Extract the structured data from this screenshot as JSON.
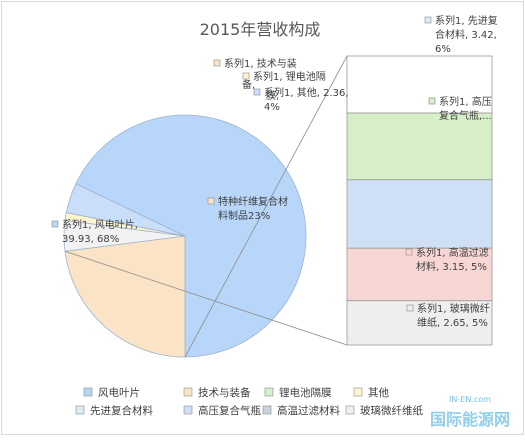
{
  "chart_data": {
    "type": "bar-of-pie",
    "title": "2015年营收构成",
    "series_name": "系列1",
    "pie": [
      {
        "category": "风电叶片",
        "value": 39.93,
        "percent": "68%",
        "color": "#b8d6fa"
      },
      {
        "category": "特种纤维复合材料制品",
        "value": 13.52,
        "percent": "23%",
        "color": "#fbe3c6"
      },
      {
        "category": "技术与装备",
        "value": 2.4,
        "percent": "4%",
        "color": "#f2f2f2"
      },
      {
        "category": "锂电池隔膜",
        "value": 0.6,
        "percent": "1%",
        "color": "#fdf6cf"
      },
      {
        "category": "其他",
        "value": 2.36,
        "percent": "4%",
        "color": "#c9defa"
      }
    ],
    "bar": [
      {
        "category": "先进复合材料",
        "value": 3.42,
        "percent": "6%",
        "color": "#ffffff"
      },
      {
        "category": "高压复合气瓶",
        "value": 4.0,
        "percent": "",
        "color": "#d6efc8"
      },
      {
        "category": "",
        "value": 4.1,
        "percent": "",
        "color": "#cfe0f6"
      },
      {
        "category": "高温过滤材料",
        "value": 3.15,
        "percent": "5%",
        "color": "#f7d6d4"
      },
      {
        "category": "玻璃微纤维纸",
        "value": 2.65,
        "percent": "5%",
        "color": "#eeeeee"
      }
    ],
    "labels": {
      "wind": [
        "系列1, 风电叶片,",
        "39.93, 68%"
      ],
      "special": [
        "特种纤维复合材",
        "料制品23%"
      ],
      "tech": [
        "系列1, 技术与装"
      ],
      "tech2": [
        "备,"
      ],
      "lithium": [
        "系列1, 锂电池隔"
      ],
      "lithium2": [
        "膜,"
      ],
      "other": [
        "系列1, 其他, 2.36,",
        "4%"
      ],
      "advanced": [
        "系列1, 先进复",
        "合材料, 3.42,",
        "6%"
      ],
      "cylinder": [
        "系列1, 高压",
        "复合气瓶,..."
      ],
      "filter": [
        "系列1, 高温过滤",
        "材料, 3.15, 5%"
      ],
      "glass": [
        "系列1, 玻璃微纤",
        "维纸, 2.65, 5%"
      ]
    },
    "legend_position": "bottom",
    "legend": [
      {
        "label": "风电叶片",
        "color": "#b8d6fa"
      },
      {
        "label": "技术与装备",
        "color": "#fbe3c6"
      },
      {
        "label": "锂电池隔膜",
        "color": "#d6efc8"
      },
      {
        "label": "其他",
        "color": "#fdf6cf"
      },
      {
        "label": "先进复合材料",
        "color": "#d8ecf6"
      },
      {
        "label": "高压复合气瓶",
        "color": "#cfe0f6"
      },
      {
        "label": "高温过滤材料",
        "color": "#c9d3e0"
      },
      {
        "label": "玻璃微纤维纸",
        "color": "#eeeeee"
      }
    ]
  },
  "watermark": {
    "text": "国际能源网",
    "subtext": "IN-EN.com"
  },
  "colors": {
    "title": "#595959",
    "label": "#404040",
    "border": "#a6a6a6",
    "watermark": "#3aa7d8"
  }
}
